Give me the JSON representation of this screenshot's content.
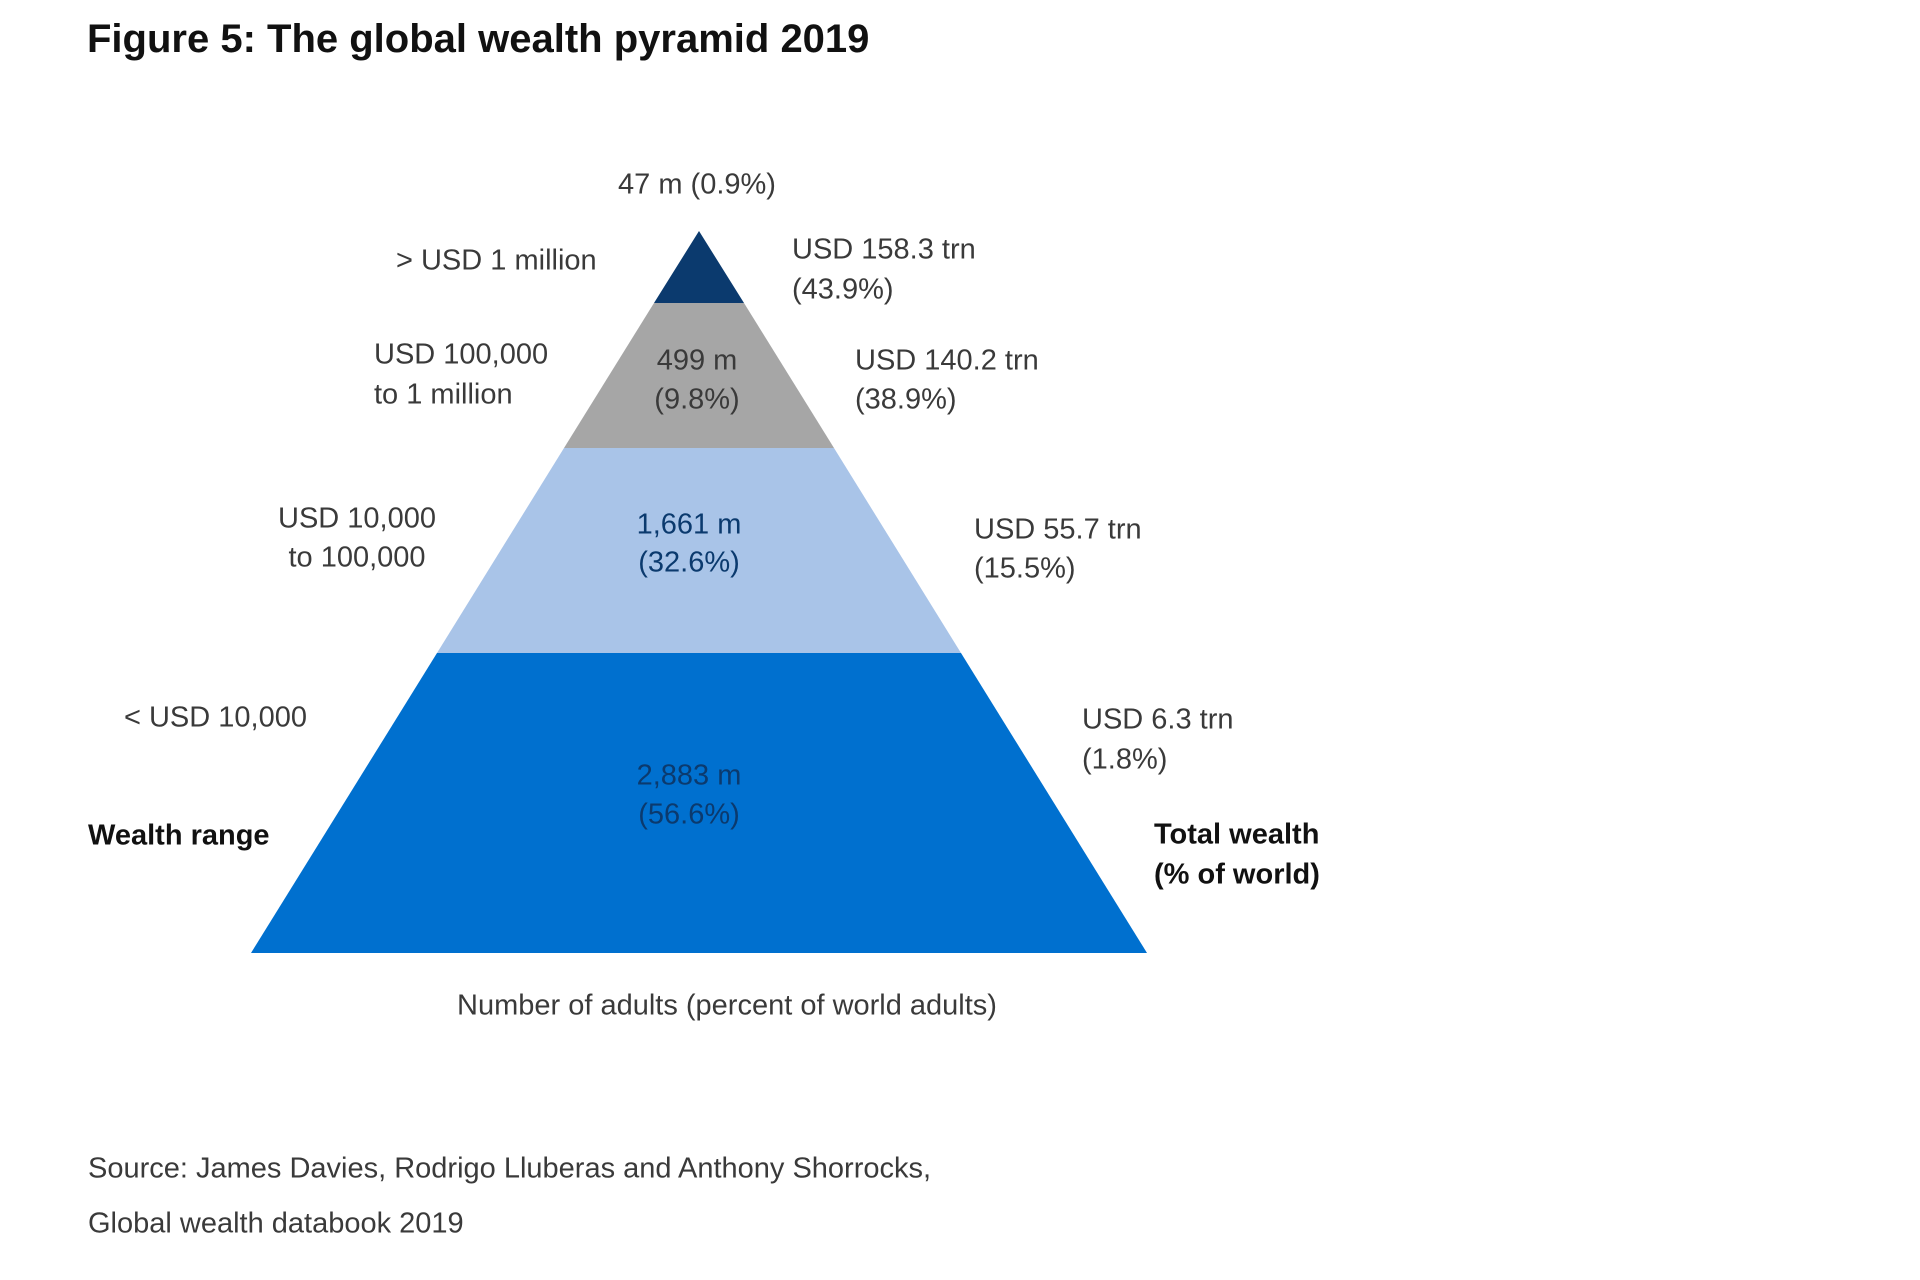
{
  "title": "Figure 5: The global wealth pyramid 2019",
  "tiers": [
    {
      "range": [
        "> USD 1 million"
      ],
      "adults": [
        "47 m (0.9%)"
      ],
      "wealth": [
        "USD 158.3 trn",
        "(43.9%)"
      ]
    },
    {
      "range": [
        "USD 100,000",
        "to 1 million"
      ],
      "adults": [
        "499 m",
        "(9.8%)"
      ],
      "wealth": [
        "USD 140.2 trn",
        "(38.9%)"
      ]
    },
    {
      "range": [
        "USD 10,000",
        "to 100,000"
      ],
      "adults": [
        "1,661 m",
        "(32.6%)"
      ],
      "wealth": [
        "USD 55.7 trn",
        "(15.5%)"
      ]
    },
    {
      "range": [
        "< USD 10,000"
      ],
      "adults": [
        "2,883 m",
        "(56.6%)"
      ],
      "wealth": [
        "USD 6.3 trn",
        "(1.8%)"
      ]
    }
  ],
  "labels": {
    "wealth_range": "Wealth range",
    "total_wealth": [
      "Total wealth",
      "(% of world)"
    ],
    "adults_axis": "Number of adults (percent of world adults)"
  },
  "source": [
    "Source: James Davies, Rodrigo Lluberas and Anthony Shorrocks,",
    "Global wealth databook 2019"
  ]
}
